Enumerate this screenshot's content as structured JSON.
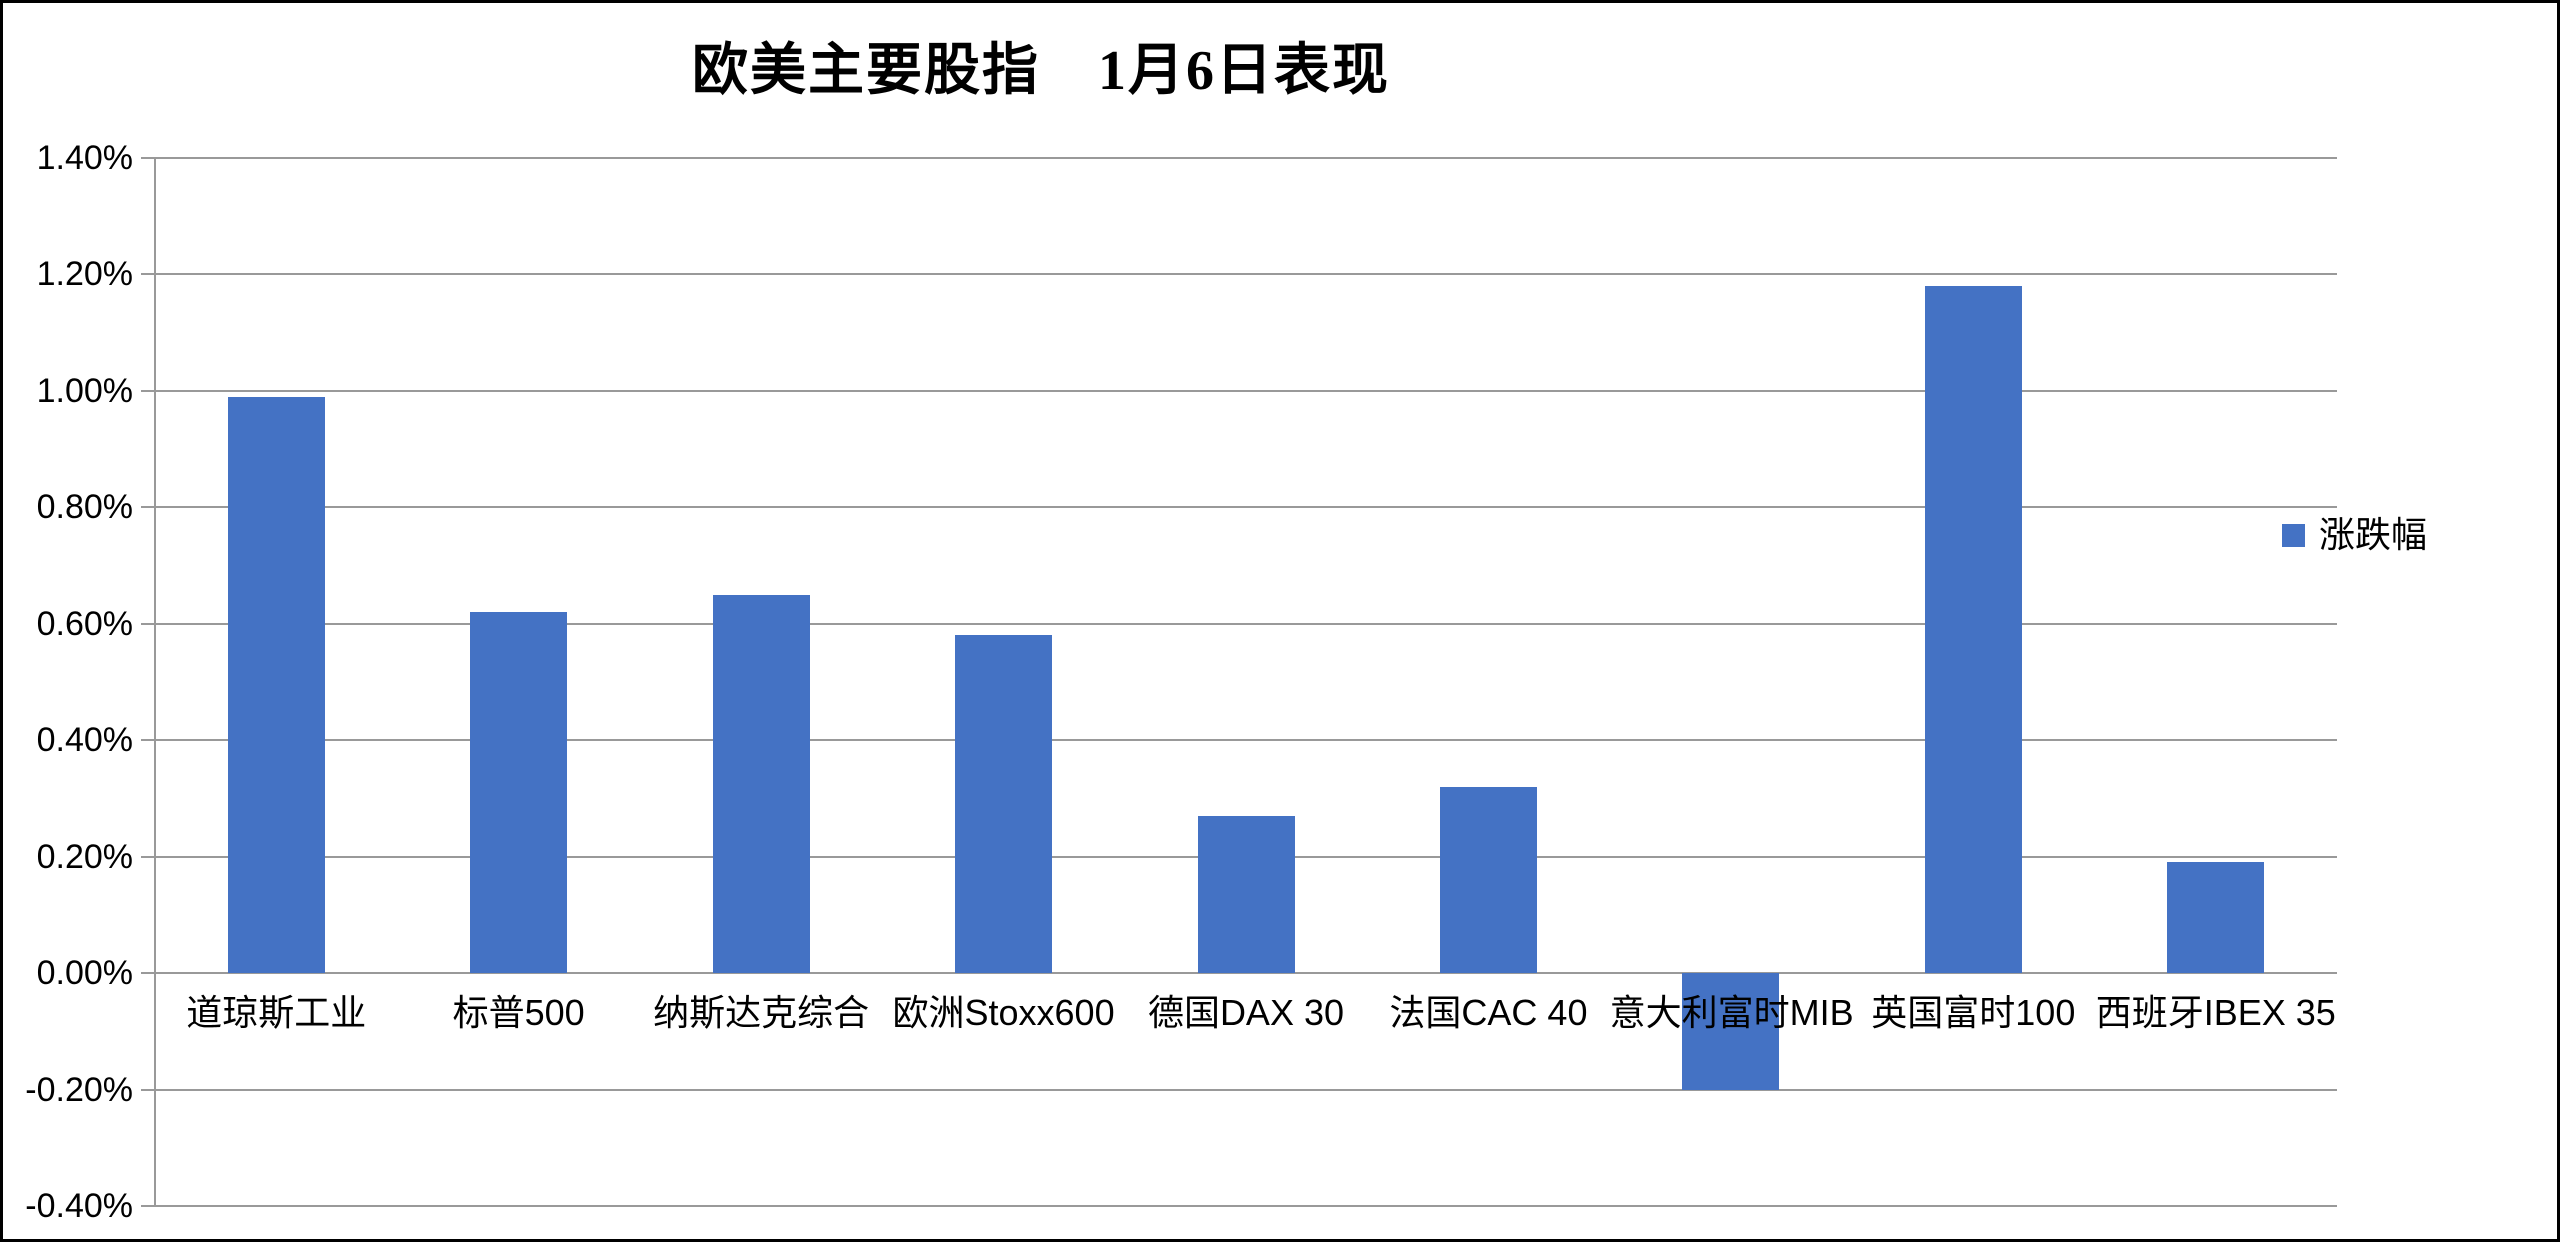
{
  "page": {
    "background_color": "#FFFFFF",
    "border_color": "#000000"
  },
  "chart_data": {
    "type": "bar",
    "title": "欧美主要股指　1月6日表现",
    "categories": [
      "道琼斯工业",
      "标普500",
      "纳斯达克综合",
      "欧洲Stoxx600",
      "德国DAX 30",
      "法国CAC 40",
      "意大利富时MIB",
      "英国富时100",
      "西班牙IBEX 35"
    ],
    "series": [
      {
        "name": "涨跌幅",
        "values": [
          0.99,
          0.62,
          0.65,
          0.58,
          0.27,
          0.32,
          -0.2,
          1.18,
          0.19
        ]
      }
    ],
    "value_unit": "%",
    "xlabel": "",
    "ylabel": "",
    "ylim": [
      -0.4,
      1.4
    ],
    "ytick_step": 0.2,
    "ytick_labels": [
      "1.40%",
      "1.20%",
      "1.00%",
      "0.80%",
      "0.60%",
      "0.40%",
      "0.20%",
      "0.00%",
      "-0.20%",
      "-0.40%"
    ],
    "grid": true,
    "legend": {
      "label": "涨跌幅",
      "position": "right"
    },
    "colors": {
      "bar": "#4472C4",
      "gridline": "#999999",
      "axis": "#999999",
      "text": "#000000"
    }
  }
}
